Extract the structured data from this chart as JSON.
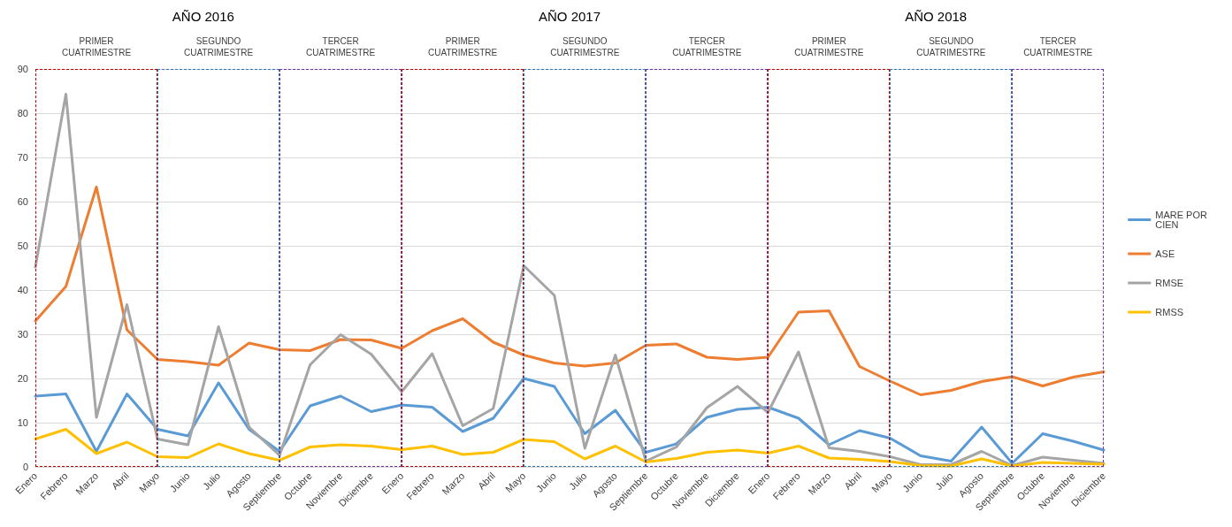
{
  "chart_data": {
    "type": "line",
    "categories": [
      "Enero",
      "Febrero",
      "Marzo",
      "Abril",
      "Mayo",
      "Junio",
      "Julio",
      "Agosto",
      "Septiembre",
      "Octubre",
      "Noviembre",
      "Diciembre",
      "Enero",
      "Febrero",
      "Marzo",
      "Abril",
      "Mayo",
      "Junio",
      "Julio",
      "Agosto",
      "Septiembre",
      "Octubre",
      "Noviembre",
      "Diciembre",
      "Enero",
      "Febrero",
      "Marzo",
      "Abril",
      "Mayo",
      "Junio",
      "Julio",
      "Agosto",
      "Septiembre",
      "Octubre",
      "Noviembre",
      "Diciembre"
    ],
    "series": [
      {
        "name": "MARE POR CIEN",
        "color": "#5b9bd5",
        "values": [
          16,
          16.5,
          3.5,
          16.5,
          8.5,
          7,
          19,
          8.5,
          3.5,
          13.8,
          16,
          12.5,
          14,
          13.5,
          8,
          11,
          20,
          18.2,
          7.5,
          12.8,
          3.3,
          5.2,
          11.2,
          13,
          13.5,
          11,
          5,
          8.2,
          6.5,
          2.5,
          1.3,
          9,
          0.8,
          7.5,
          5.8,
          3.8
        ]
      },
      {
        "name": "ASE",
        "color": "#ed7d31",
        "values": [
          33,
          40.8,
          63.3,
          31,
          24.3,
          23.8,
          23,
          28,
          26.5,
          26.3,
          28.8,
          28.7,
          26.8,
          30.8,
          33.5,
          28.2,
          25.3,
          23.5,
          22.8,
          23.5,
          27.5,
          27.8,
          24.8,
          24.3,
          24.8,
          35,
          35.3,
          22.7,
          19.4,
          16.3,
          17.3,
          19.3,
          20.4,
          18.3,
          20.3,
          21.5
        ]
      },
      {
        "name": "RMSE",
        "color": "#a5a5a5",
        "values": [
          45.2,
          84.3,
          11.2,
          36.7,
          6.3,
          5,
          31.7,
          9,
          2.6,
          23.1,
          29.9,
          25.5,
          17,
          25.6,
          9.3,
          13.2,
          45.5,
          38.8,
          4.2,
          25.3,
          1.3,
          4.5,
          13.4,
          18.2,
          12.3,
          26,
          4.3,
          3.5,
          2.3,
          0.5,
          0.5,
          3.5,
          0.3,
          2.2,
          1.5,
          0.8
        ]
      },
      {
        "name": "RMSS",
        "color": "#ffc000",
        "values": [
          6.3,
          8.5,
          3,
          5.6,
          2.3,
          2.1,
          5.2,
          3,
          1.5,
          4.5,
          5,
          4.7,
          3.9,
          4.7,
          2.8,
          3.3,
          6.2,
          5.7,
          1.8,
          4.7,
          1.1,
          1.9,
          3.3,
          3.8,
          3.1,
          4.7,
          2,
          1.7,
          1.2,
          0.3,
          0.2,
          1.8,
          0.2,
          1,
          0.8,
          0.6
        ]
      }
    ],
    "ylim": [
      0,
      90
    ],
    "yticks": [
      0,
      10,
      20,
      30,
      40,
      50,
      60,
      70,
      80,
      90
    ],
    "grid": "y",
    "legend": "right",
    "marker": "none",
    "line_style": "solid",
    "annotations": [
      "AÑO 2016",
      "AÑO 2017",
      "AÑO 2018",
      "PRIMER CUATRIMESTRE",
      "SEGUNDO CUATRIMESTRE",
      "TERCER CUATRIMESTRE",
      "PRIMER CUATRIMESTRE",
      "SEGUNDO CUATRIMESTRE",
      "TERCER CUATRIMESTRE",
      "PRIMER CUATRIMESTRE",
      "SEGUNDO CUATRIMESTRE",
      "TERCER CUATRIMESTRE"
    ]
  }
}
